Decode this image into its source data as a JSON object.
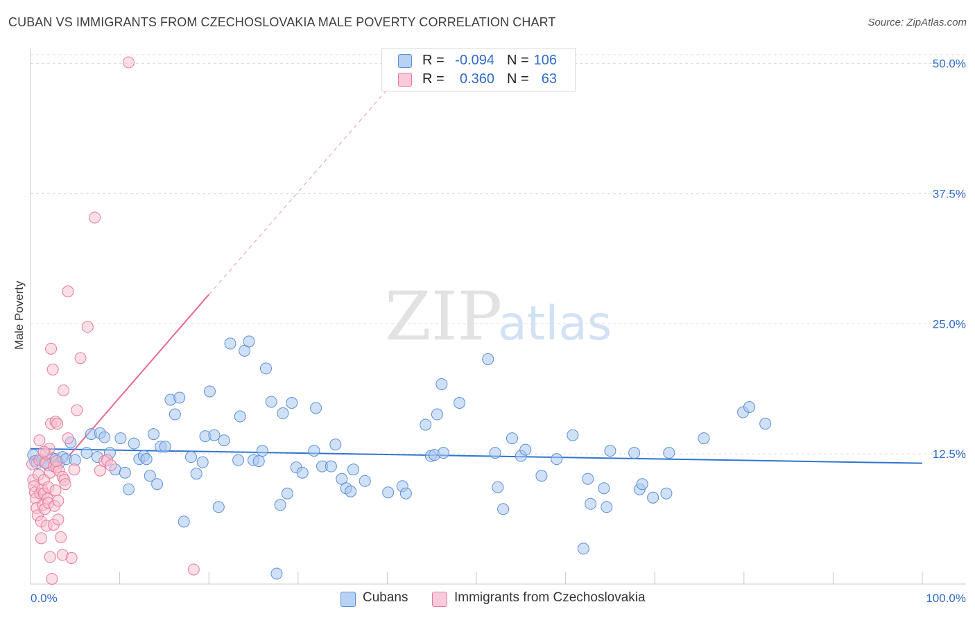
{
  "header": {
    "title": "CUBAN VS IMMIGRANTS FROM CZECHOSLOVAKIA MALE POVERTY CORRELATION CHART",
    "source": "Source: ZipAtlas.com"
  },
  "legend": {
    "rows": [
      {
        "r_label": "R =",
        "r_value": "-0.094",
        "n_label": "N =",
        "n_value": "106"
      },
      {
        "r_label": "R =",
        "r_value": "0.360",
        "n_label": "N =",
        "n_value": "63"
      }
    ]
  },
  "bottom_legend": {
    "items": [
      {
        "label": "Cubans"
      },
      {
        "label": "Immigrants from Czechoslovakia"
      }
    ]
  },
  "watermark": {
    "zip": "ZIP",
    "atlas": "atlas"
  },
  "colors": {
    "blue_fill": "#a9c8f0",
    "blue_stroke": "#5b8fd8",
    "blue_line": "#2f74d0",
    "pink_fill": "#f7bfd0",
    "pink_stroke": "#e8799a",
    "pink_line": "#e8678f",
    "tick_label": "#2e6bc9",
    "grid": "#dcdcdc"
  },
  "chart_data": {
    "type": "scatter",
    "title": "CUBAN VS IMMIGRANTS FROM CZECHOSLOVAKIA MALE POVERTY CORRELATION CHART",
    "xlabel": "",
    "ylabel": "Male Poverty",
    "xlim": [
      0,
      100
    ],
    "ylim": [
      0,
      51.5
    ],
    "x_tick_labels": [
      "0.0%",
      "100.0%"
    ],
    "y_ticks": [
      12.5,
      25.0,
      37.5,
      50.0
    ],
    "y_tick_labels": [
      "12.5%",
      "25.0%",
      "37.5%",
      "50.0%"
    ],
    "grid": true,
    "legend_position": "top-center",
    "series": [
      {
        "name": "Cubans",
        "r": -0.094,
        "n": 106,
        "trend": {
          "x": [
            0,
            100
          ],
          "y": [
            13.0,
            11.6
          ],
          "style": "solid"
        },
        "points": [
          [
            0.3,
            12.4
          ],
          [
            0.5,
            11.8
          ],
          [
            0.7,
            11.6
          ],
          [
            1.0,
            11.9
          ],
          [
            1.3,
            11.9
          ],
          [
            1.6,
            11.7
          ],
          [
            2.0,
            11.4
          ],
          [
            2.4,
            12.1
          ],
          [
            2.8,
            12.0
          ],
          [
            3.2,
            11.6
          ],
          [
            3.6,
            12.2
          ],
          [
            4.0,
            12.0
          ],
          [
            4.5,
            13.6
          ],
          [
            5.0,
            11.9
          ],
          [
            6.3,
            12.6
          ],
          [
            6.8,
            14.4
          ],
          [
            7.5,
            12.2
          ],
          [
            7.8,
            14.5
          ],
          [
            8.3,
            14.1
          ],
          [
            8.9,
            12.6
          ],
          [
            9.5,
            11.0
          ],
          [
            10.1,
            14.0
          ],
          [
            10.6,
            10.7
          ],
          [
            11.0,
            9.1
          ],
          [
            11.6,
            13.5
          ],
          [
            12.2,
            12.0
          ],
          [
            12.7,
            12.3
          ],
          [
            13.0,
            12.0
          ],
          [
            13.4,
            10.4
          ],
          [
            13.8,
            14.4
          ],
          [
            14.2,
            9.6
          ],
          [
            14.6,
            13.2
          ],
          [
            15.1,
            13.2
          ],
          [
            15.7,
            17.7
          ],
          [
            16.2,
            16.3
          ],
          [
            16.7,
            17.9
          ],
          [
            17.2,
            6.0
          ],
          [
            18.0,
            12.2
          ],
          [
            18.6,
            10.6
          ],
          [
            19.3,
            11.7
          ],
          [
            19.6,
            14.2
          ],
          [
            20.1,
            18.5
          ],
          [
            20.6,
            14.3
          ],
          [
            21.1,
            7.4
          ],
          [
            21.7,
            13.8
          ],
          [
            22.4,
            23.1
          ],
          [
            23.3,
            11.9
          ],
          [
            23.5,
            16.1
          ],
          [
            24.0,
            22.4
          ],
          [
            24.5,
            23.3
          ],
          [
            25.0,
            11.9
          ],
          [
            25.6,
            11.8
          ],
          [
            26.0,
            12.8
          ],
          [
            26.4,
            20.7
          ],
          [
            27.0,
            17.5
          ],
          [
            27.6,
            1.0
          ],
          [
            28.0,
            7.6
          ],
          [
            28.3,
            16.4
          ],
          [
            28.8,
            8.7
          ],
          [
            29.3,
            17.4
          ],
          [
            29.8,
            11.2
          ],
          [
            30.5,
            10.7
          ],
          [
            31.8,
            12.8
          ],
          [
            32.0,
            16.9
          ],
          [
            32.7,
            11.3
          ],
          [
            33.7,
            11.3
          ],
          [
            34.2,
            13.4
          ],
          [
            34.9,
            10.1
          ],
          [
            35.4,
            9.2
          ],
          [
            35.9,
            8.9
          ],
          [
            36.2,
            11.0
          ],
          [
            37.5,
            9.9
          ],
          [
            40.1,
            8.8
          ],
          [
            41.7,
            9.4
          ],
          [
            42.1,
            8.7
          ],
          [
            44.3,
            15.3
          ],
          [
            44.9,
            12.3
          ],
          [
            45.3,
            12.4
          ],
          [
            45.6,
            16.3
          ],
          [
            46.1,
            19.2
          ],
          [
            46.3,
            12.6
          ],
          [
            48.1,
            17.4
          ],
          [
            51.3,
            21.6
          ],
          [
            52.1,
            12.6
          ],
          [
            52.4,
            9.3
          ],
          [
            53.0,
            7.2
          ],
          [
            54.0,
            14.0
          ],
          [
            55.0,
            12.3
          ],
          [
            55.5,
            12.9
          ],
          [
            57.3,
            10.4
          ],
          [
            59.0,
            12.0
          ],
          [
            60.8,
            14.3
          ],
          [
            62.0,
            3.4
          ],
          [
            62.5,
            10.1
          ],
          [
            62.8,
            7.7
          ],
          [
            64.3,
            9.2
          ],
          [
            64.6,
            7.4
          ],
          [
            65.0,
            12.8
          ],
          [
            67.7,
            12.6
          ],
          [
            68.3,
            9.1
          ],
          [
            68.6,
            9.6
          ],
          [
            69.8,
            8.3
          ],
          [
            71.3,
            8.7
          ],
          [
            71.6,
            12.6
          ],
          [
            75.5,
            14.0
          ],
          [
            79.9,
            16.5
          ],
          [
            80.6,
            17.0
          ],
          [
            82.4,
            15.4
          ]
        ]
      },
      {
        "name": "Immigrants from Czechoslovakia",
        "r": 0.36,
        "n": 63,
        "trend": {
          "x": [
            4.0,
            20.0
          ],
          "y": [
            12.0,
            27.8
          ],
          "style": "solid"
        },
        "trend_extension": {
          "x": [
            20.0,
            40.0
          ],
          "y": [
            27.8,
            47.5
          ],
          "style": "dashed"
        },
        "points": [
          [
            0.2,
            11.5
          ],
          [
            0.3,
            10.0
          ],
          [
            0.4,
            9.4
          ],
          [
            0.5,
            8.8
          ],
          [
            0.6,
            8.2
          ],
          [
            0.7,
            7.3
          ],
          [
            0.8,
            6.6
          ],
          [
            0.9,
            10.5
          ],
          [
            1.0,
            11.9
          ],
          [
            1.0,
            13.8
          ],
          [
            1.1,
            8.7
          ],
          [
            1.2,
            6.0
          ],
          [
            1.2,
            4.4
          ],
          [
            1.3,
            9.1
          ],
          [
            1.4,
            7.6
          ],
          [
            1.5,
            8.7
          ],
          [
            1.5,
            10.0
          ],
          [
            1.6,
            7.2
          ],
          [
            1.7,
            11.6
          ],
          [
            1.7,
            12.5
          ],
          [
            1.8,
            5.6
          ],
          [
            1.9,
            8.2
          ],
          [
            2.0,
            7.8
          ],
          [
            2.0,
            9.3
          ],
          [
            2.1,
            13.0
          ],
          [
            2.2,
            10.7
          ],
          [
            2.2,
            2.6
          ],
          [
            2.3,
            15.4
          ],
          [
            2.3,
            22.6
          ],
          [
            2.4,
            0.5
          ],
          [
            2.5,
            20.6
          ],
          [
            2.6,
            11.3
          ],
          [
            2.6,
            5.7
          ],
          [
            2.7,
            7.5
          ],
          [
            2.8,
            9.0
          ],
          [
            2.8,
            15.6
          ],
          [
            2.9,
            11.2
          ],
          [
            3.0,
            15.4
          ],
          [
            3.1,
            8.0
          ],
          [
            3.1,
            6.2
          ],
          [
            3.2,
            10.9
          ],
          [
            3.4,
            4.5
          ],
          [
            3.6,
            2.8
          ],
          [
            3.6,
            10.3
          ],
          [
            3.7,
            18.6
          ],
          [
            3.8,
            10.0
          ],
          [
            3.9,
            9.6
          ],
          [
            4.2,
            28.1
          ],
          [
            4.2,
            14.0
          ],
          [
            4.6,
            2.5
          ],
          [
            4.9,
            11.0
          ],
          [
            5.2,
            16.7
          ],
          [
            5.6,
            21.7
          ],
          [
            6.4,
            24.7
          ],
          [
            7.2,
            35.2
          ],
          [
            7.8,
            10.9
          ],
          [
            8.3,
            11.8
          ],
          [
            8.6,
            11.9
          ],
          [
            9.0,
            11.4
          ],
          [
            11.0,
            50.1
          ],
          [
            18.3,
            1.4
          ],
          [
            1.5,
            12.7
          ],
          [
            2.9,
            11.8
          ]
        ]
      }
    ]
  }
}
